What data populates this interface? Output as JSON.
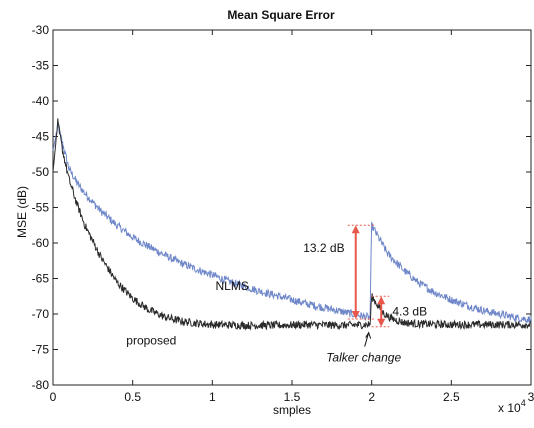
{
  "chart_data": {
    "type": "line",
    "title": "Mean Square Error",
    "xlabel": "smples",
    "ylabel": "MSE (dB)",
    "x_exponent_label": "x 10",
    "x_exponent_power": "4",
    "xlim": [
      0,
      3
    ],
    "ylim": [
      -80,
      -30
    ],
    "x_ticks": [
      0,
      0.5,
      1,
      1.5,
      2,
      2.5,
      3
    ],
    "x_tick_labels": [
      "0",
      "0.5",
      "1",
      "1.5",
      "2",
      "2.5",
      "3"
    ],
    "y_ticks": [
      -30,
      -35,
      -40,
      -45,
      -50,
      -55,
      -60,
      -65,
      -70,
      -75,
      -80
    ],
    "y_tick_labels": [
      "-30",
      "-35",
      "-40",
      "-45",
      "-50",
      "-55",
      "-60",
      "-65",
      "-70",
      "-75",
      "-80"
    ],
    "grid": false,
    "series": [
      {
        "name": "NLMS",
        "color": "#6f87c9",
        "x": [
          0,
          0.03,
          0.06,
          0.1,
          0.15,
          0.2,
          0.3,
          0.4,
          0.5,
          0.6,
          0.7,
          0.8,
          0.9,
          1.0,
          1.1,
          1.2,
          1.3,
          1.4,
          1.5,
          1.6,
          1.7,
          1.8,
          1.9,
          1.99,
          2.0,
          2.1,
          2.2,
          2.3,
          2.4,
          2.5,
          2.6,
          2.7,
          2.8,
          2.9,
          3.0
        ],
        "values": [
          -47,
          -43.5,
          -46,
          -49.5,
          -51.5,
          -53,
          -55.5,
          -57.5,
          -59.2,
          -60.5,
          -61.7,
          -62.8,
          -63.7,
          -64.5,
          -65.4,
          -66.1,
          -66.8,
          -67.4,
          -68,
          -68.6,
          -69.1,
          -69.6,
          -70.1,
          -70.5,
          -57.5,
          -61.5,
          -63.8,
          -65.7,
          -67,
          -68,
          -68.8,
          -69.5,
          -70,
          -70.5,
          -70.8
        ]
      },
      {
        "name": "proposed",
        "color": "#2a2a2a",
        "x": [
          0,
          0.03,
          0.06,
          0.1,
          0.15,
          0.2,
          0.3,
          0.4,
          0.5,
          0.6,
          0.7,
          0.8,
          0.9,
          1.0,
          1.2,
          1.4,
          1.6,
          1.8,
          1.99,
          2.0,
          2.03,
          2.07,
          2.12,
          2.2,
          2.3,
          2.5,
          2.7,
          3.0
        ],
        "values": [
          -50,
          -43,
          -47,
          -51,
          -54.5,
          -57.5,
          -62,
          -65.5,
          -67.8,
          -69.4,
          -70.4,
          -71,
          -71.3,
          -71.5,
          -71.6,
          -71.6,
          -71.5,
          -71.6,
          -71.5,
          -67.5,
          -68.5,
          -69.8,
          -70.6,
          -71.2,
          -71.4,
          -71.5,
          -71.5,
          -71.5
        ]
      }
    ],
    "annotations": [
      {
        "text": "13.2 dB",
        "x": 1.9,
        "y_top": -57.5,
        "y_bottom": -70.7,
        "color": "#e8584a"
      },
      {
        "text": "4.3 dB",
        "x": 2.06,
        "y_top": -67.5,
        "y_bottom": -71.8,
        "color": "#e8584a"
      },
      {
        "text": "Talker change",
        "x": 2.0,
        "y": -71.5
      }
    ]
  }
}
